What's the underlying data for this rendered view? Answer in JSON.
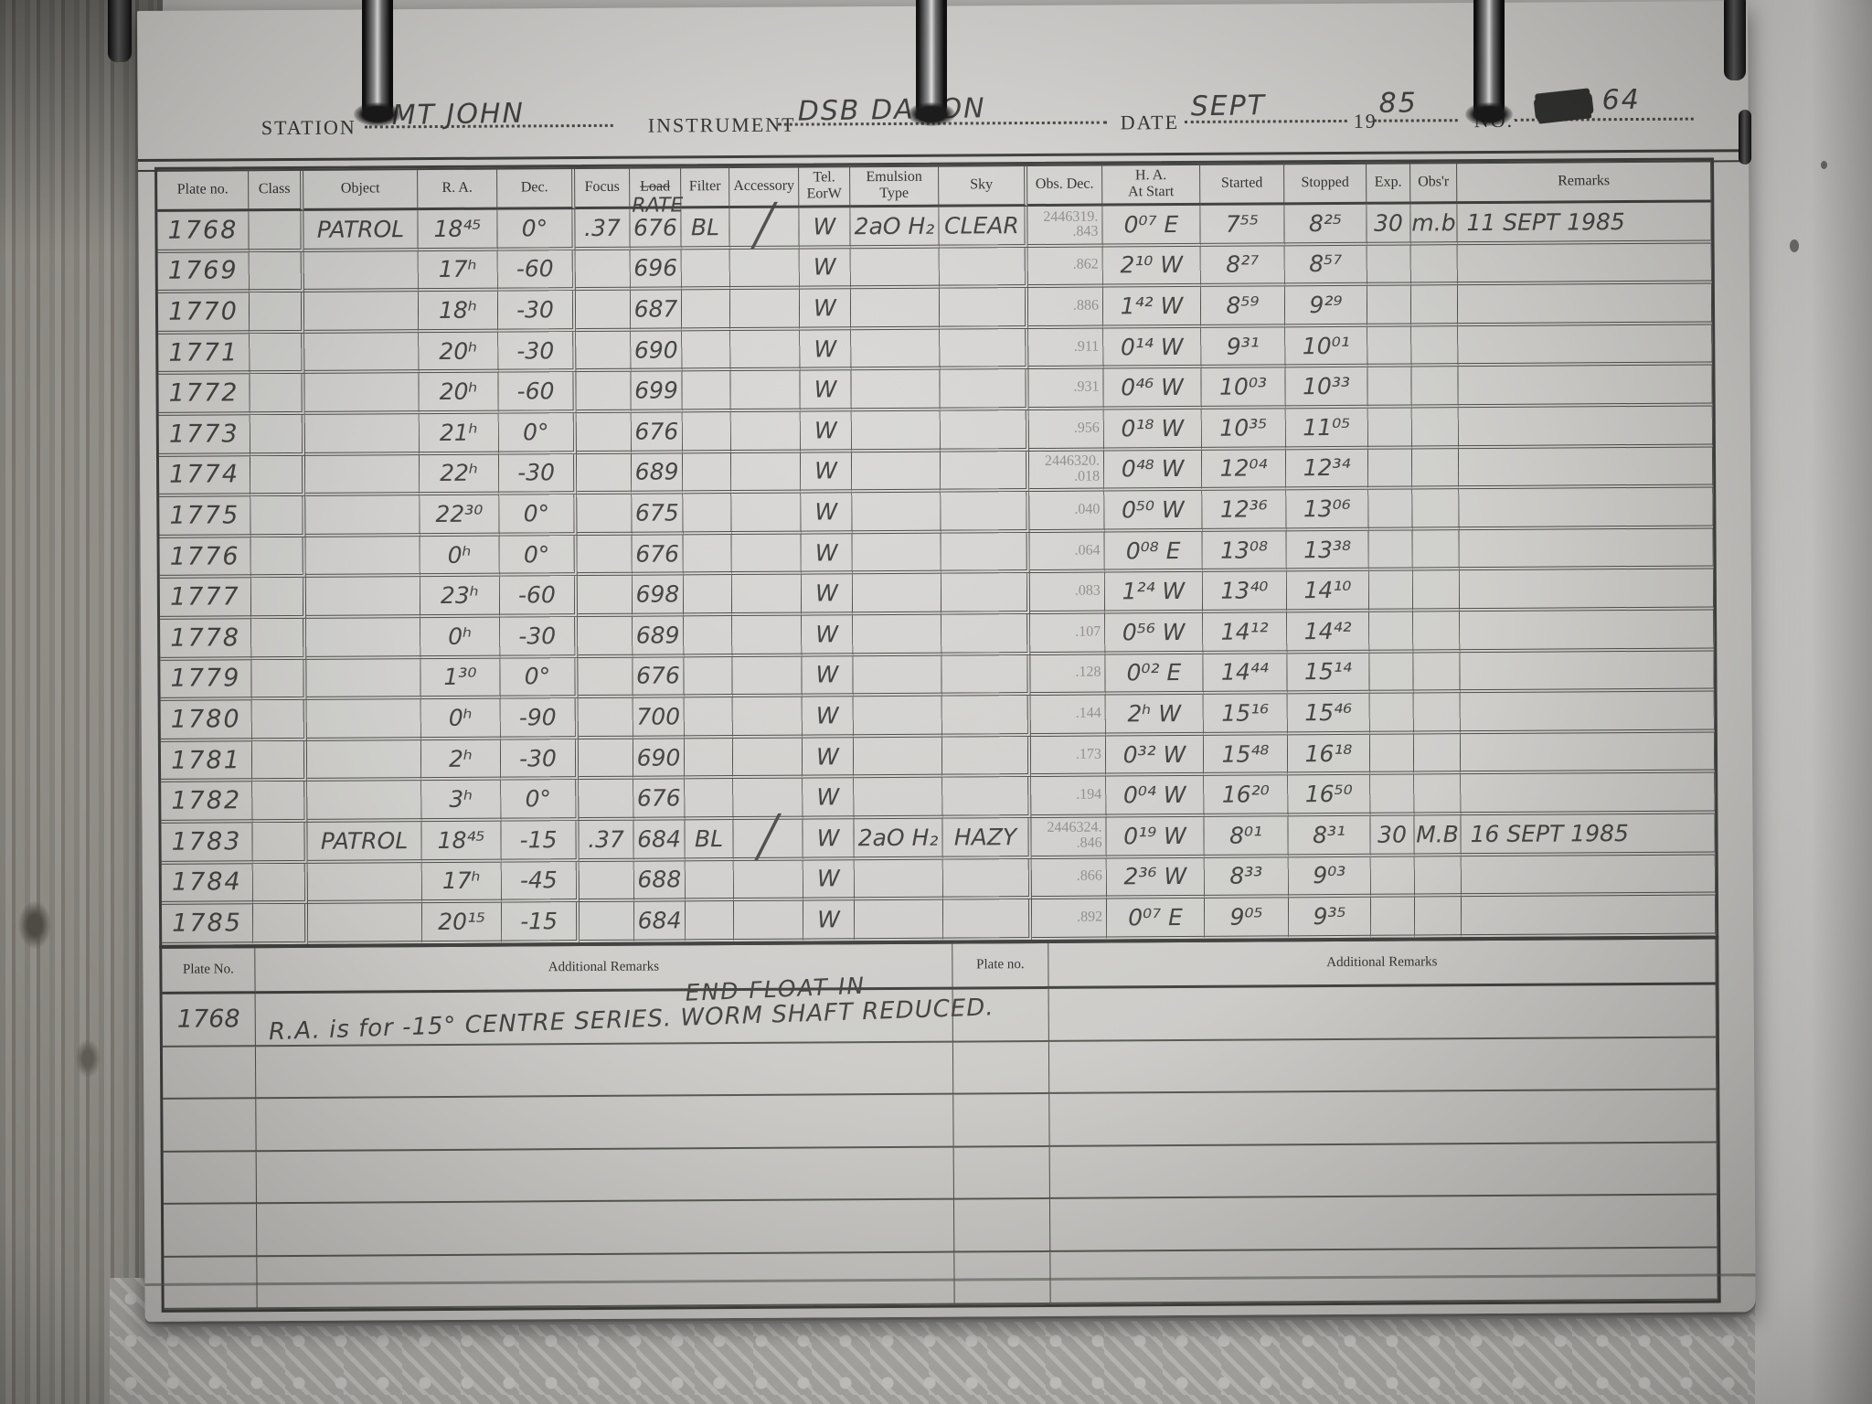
{
  "header": {
    "station_label": "STATION",
    "station_value": "MT JOHN",
    "instrument_label": "INSTRUMENT",
    "instrument_value": "DSB  DAMON",
    "date_label": "DATE",
    "date_value": "SEPT",
    "year_prefix": "19",
    "year_value": "85",
    "no_label": "NO.",
    "no_value": "64"
  },
  "table": {
    "columns": [
      "Plate no.",
      "Class",
      "Object",
      "R. A.",
      "Dec.",
      "Focus",
      "Load",
      "Filter",
      "Accessory",
      "Tel.\nEorW",
      "Emulsion\nType",
      "Sky",
      "Obs. Dec.",
      "H. A.\nAt Start",
      "Started",
      "Stopped",
      "Exp.",
      "Obs'r",
      "Remarks"
    ],
    "load_correction": "RATE",
    "rows": [
      {
        "plate": "1768",
        "cls": "",
        "object": "PATROL",
        "ra": "18⁴⁵",
        "dec": "0°",
        "focus": ".37",
        "load": "676",
        "filter": "BL",
        "acc": "╱",
        "tel": "W",
        "emu": "2aO H₂",
        "sky": "CLEAR",
        "obsdec": "2446319.\n.843",
        "ha": "0⁰⁷ E",
        "started": "7⁵⁵",
        "stopped": "8²⁵",
        "exp": "30",
        "obsr": "m.b",
        "remarks": "11 SEPT 1985"
      },
      {
        "plate": "1769",
        "cls": "",
        "object": "",
        "ra": "17ʰ",
        "dec": "-60",
        "focus": "",
        "load": "696",
        "filter": "",
        "acc": "",
        "tel": "W",
        "emu": "",
        "sky": "",
        "obsdec": ".862",
        "ha": "2¹⁰ W",
        "started": "8²⁷",
        "stopped": "8⁵⁷",
        "exp": "",
        "obsr": "",
        "remarks": ""
      },
      {
        "plate": "1770",
        "cls": "",
        "object": "",
        "ra": "18ʰ",
        "dec": "-30",
        "focus": "",
        "load": "687",
        "filter": "",
        "acc": "",
        "tel": "W",
        "emu": "",
        "sky": "",
        "obsdec": ".886",
        "ha": "1⁴² W",
        "started": "8⁵⁹",
        "stopped": "9²⁹",
        "exp": "",
        "obsr": "",
        "remarks": ""
      },
      {
        "plate": "1771",
        "cls": "",
        "object": "",
        "ra": "20ʰ",
        "dec": "-30",
        "focus": "",
        "load": "690",
        "filter": "",
        "acc": "",
        "tel": "W",
        "emu": "",
        "sky": "",
        "obsdec": ".911",
        "ha": "0¹⁴ W",
        "started": "9³¹",
        "stopped": "10⁰¹",
        "exp": "",
        "obsr": "",
        "remarks": ""
      },
      {
        "plate": "1772",
        "cls": "",
        "object": "",
        "ra": "20ʰ",
        "dec": "-60",
        "focus": "",
        "load": "699",
        "filter": "",
        "acc": "",
        "tel": "W",
        "emu": "",
        "sky": "",
        "obsdec": ".931",
        "ha": "0⁴⁶ W",
        "started": "10⁰³",
        "stopped": "10³³",
        "exp": "",
        "obsr": "",
        "remarks": ""
      },
      {
        "plate": "1773",
        "cls": "",
        "object": "",
        "ra": "21ʰ",
        "dec": "0°",
        "focus": "",
        "load": "676",
        "filter": "",
        "acc": "",
        "tel": "W",
        "emu": "",
        "sky": "",
        "obsdec": ".956",
        "ha": "0¹⁸ W",
        "started": "10³⁵",
        "stopped": "11⁰⁵",
        "exp": "",
        "obsr": "",
        "remarks": ""
      },
      {
        "plate": "1774",
        "cls": "",
        "object": "",
        "ra": "22ʰ",
        "dec": "-30",
        "focus": "",
        "load": "689",
        "filter": "",
        "acc": "",
        "tel": "W",
        "emu": "",
        "sky": "",
        "obsdec": "2446320.\n.018",
        "ha": "0⁴⁸ W",
        "started": "12⁰⁴",
        "stopped": "12³⁴",
        "exp": "",
        "obsr": "",
        "remarks": ""
      },
      {
        "plate": "1775",
        "cls": "",
        "object": "",
        "ra": "22³⁰",
        "dec": "0°",
        "focus": "",
        "load": "675",
        "filter": "",
        "acc": "",
        "tel": "W",
        "emu": "",
        "sky": "",
        "obsdec": ".040",
        "ha": "0⁵⁰ W",
        "started": "12³⁶",
        "stopped": "13⁰⁶",
        "exp": "",
        "obsr": "",
        "remarks": ""
      },
      {
        "plate": "1776",
        "cls": "",
        "object": "",
        "ra": "0ʰ",
        "dec": "0°",
        "focus": "",
        "load": "676",
        "filter": "",
        "acc": "",
        "tel": "W",
        "emu": "",
        "sky": "",
        "obsdec": ".064",
        "ha": "0⁰⁸ E",
        "started": "13⁰⁸",
        "stopped": "13³⁸",
        "exp": "",
        "obsr": "",
        "remarks": ""
      },
      {
        "plate": "1777",
        "cls": "",
        "object": "",
        "ra": "23ʰ",
        "dec": "-60",
        "focus": "",
        "load": "698",
        "filter": "",
        "acc": "",
        "tel": "W",
        "emu": "",
        "sky": "",
        "obsdec": ".083",
        "ha": "1²⁴ W",
        "started": "13⁴⁰",
        "stopped": "14¹⁰",
        "exp": "",
        "obsr": "",
        "remarks": ""
      },
      {
        "plate": "1778",
        "cls": "",
        "object": "",
        "ra": "0ʰ",
        "dec": "-30",
        "focus": "",
        "load": "689",
        "filter": "",
        "acc": "",
        "tel": "W",
        "emu": "",
        "sky": "",
        "obsdec": ".107",
        "ha": "0⁵⁶ W",
        "started": "14¹²",
        "stopped": "14⁴²",
        "exp": "",
        "obsr": "",
        "remarks": ""
      },
      {
        "plate": "1779",
        "cls": "",
        "object": "",
        "ra": "1³⁰",
        "dec": "0°",
        "focus": "",
        "load": "676",
        "filter": "",
        "acc": "",
        "tel": "W",
        "emu": "",
        "sky": "",
        "obsdec": ".128",
        "ha": "0⁰² E",
        "started": "14⁴⁴",
        "stopped": "15¹⁴",
        "exp": "",
        "obsr": "",
        "remarks": ""
      },
      {
        "plate": "1780",
        "cls": "",
        "object": "",
        "ra": "0ʰ",
        "dec": "-90",
        "focus": "",
        "load": "700",
        "filter": "",
        "acc": "",
        "tel": "W",
        "emu": "",
        "sky": "",
        "obsdec": ".144",
        "ha": "2ʰ W",
        "started": "15¹⁶",
        "stopped": "15⁴⁶",
        "exp": "",
        "obsr": "",
        "remarks": ""
      },
      {
        "plate": "1781",
        "cls": "",
        "object": "",
        "ra": "2ʰ",
        "dec": "-30",
        "focus": "",
        "load": "690",
        "filter": "",
        "acc": "",
        "tel": "W",
        "emu": "",
        "sky": "",
        "obsdec": ".173",
        "ha": "0³² W",
        "started": "15⁴⁸",
        "stopped": "16¹⁸",
        "exp": "",
        "obsr": "",
        "remarks": ""
      },
      {
        "plate": "1782",
        "cls": "",
        "object": "",
        "ra": "3ʰ",
        "dec": "0°",
        "focus": "",
        "load": "676",
        "filter": "",
        "acc": "",
        "tel": "W",
        "emu": "",
        "sky": "",
        "obsdec": ".194",
        "ha": "0⁰⁴ W",
        "started": "16²⁰",
        "stopped": "16⁵⁰",
        "exp": "",
        "obsr": "",
        "remarks": ""
      },
      {
        "plate": "1783",
        "cls": "",
        "object": "PATROL",
        "ra": "18⁴⁵",
        "dec": "-15",
        "focus": ".37",
        "load": "684",
        "filter": "BL",
        "acc": "╱",
        "tel": "W",
        "emu": "2aO H₂",
        "sky": "HAZY",
        "obsdec": "2446324.\n.846",
        "ha": "0¹⁹ W",
        "started": "8⁰¹",
        "stopped": "8³¹",
        "exp": "30",
        "obsr": "M.B",
        "remarks": "16 SEPT 1985"
      },
      {
        "plate": "1784",
        "cls": "",
        "object": "",
        "ra": "17ʰ",
        "dec": "-45",
        "focus": "",
        "load": "688",
        "filter": "",
        "acc": "",
        "tel": "W",
        "emu": "",
        "sky": "",
        "obsdec": ".866",
        "ha": "2³⁶ W",
        "started": "8³³",
        "stopped": "9⁰³",
        "exp": "",
        "obsr": "",
        "remarks": ""
      },
      {
        "plate": "1785",
        "cls": "",
        "object": "",
        "ra": "20¹⁵",
        "dec": "-15",
        "focus": "",
        "load": "684",
        "filter": "",
        "acc": "",
        "tel": "W",
        "emu": "",
        "sky": "",
        "obsdec": ".892",
        "ha": "0⁰⁷ E",
        "started": "9⁰⁵",
        "stopped": "9³⁵",
        "exp": "",
        "obsr": "",
        "remarks": ""
      }
    ]
  },
  "additional": {
    "plate_no_label": "Plate No.",
    "remarks_label": "Additional Remarks",
    "plate_no_label_2": "Plate no.",
    "remarks_label_2": "Additional Remarks",
    "entry_plate": "1768",
    "entry_line_above": "END FLOAT IN",
    "entry_text": "R.A. is for -15° CENTRE SERIES. WORM SHAFT REDUCED."
  }
}
